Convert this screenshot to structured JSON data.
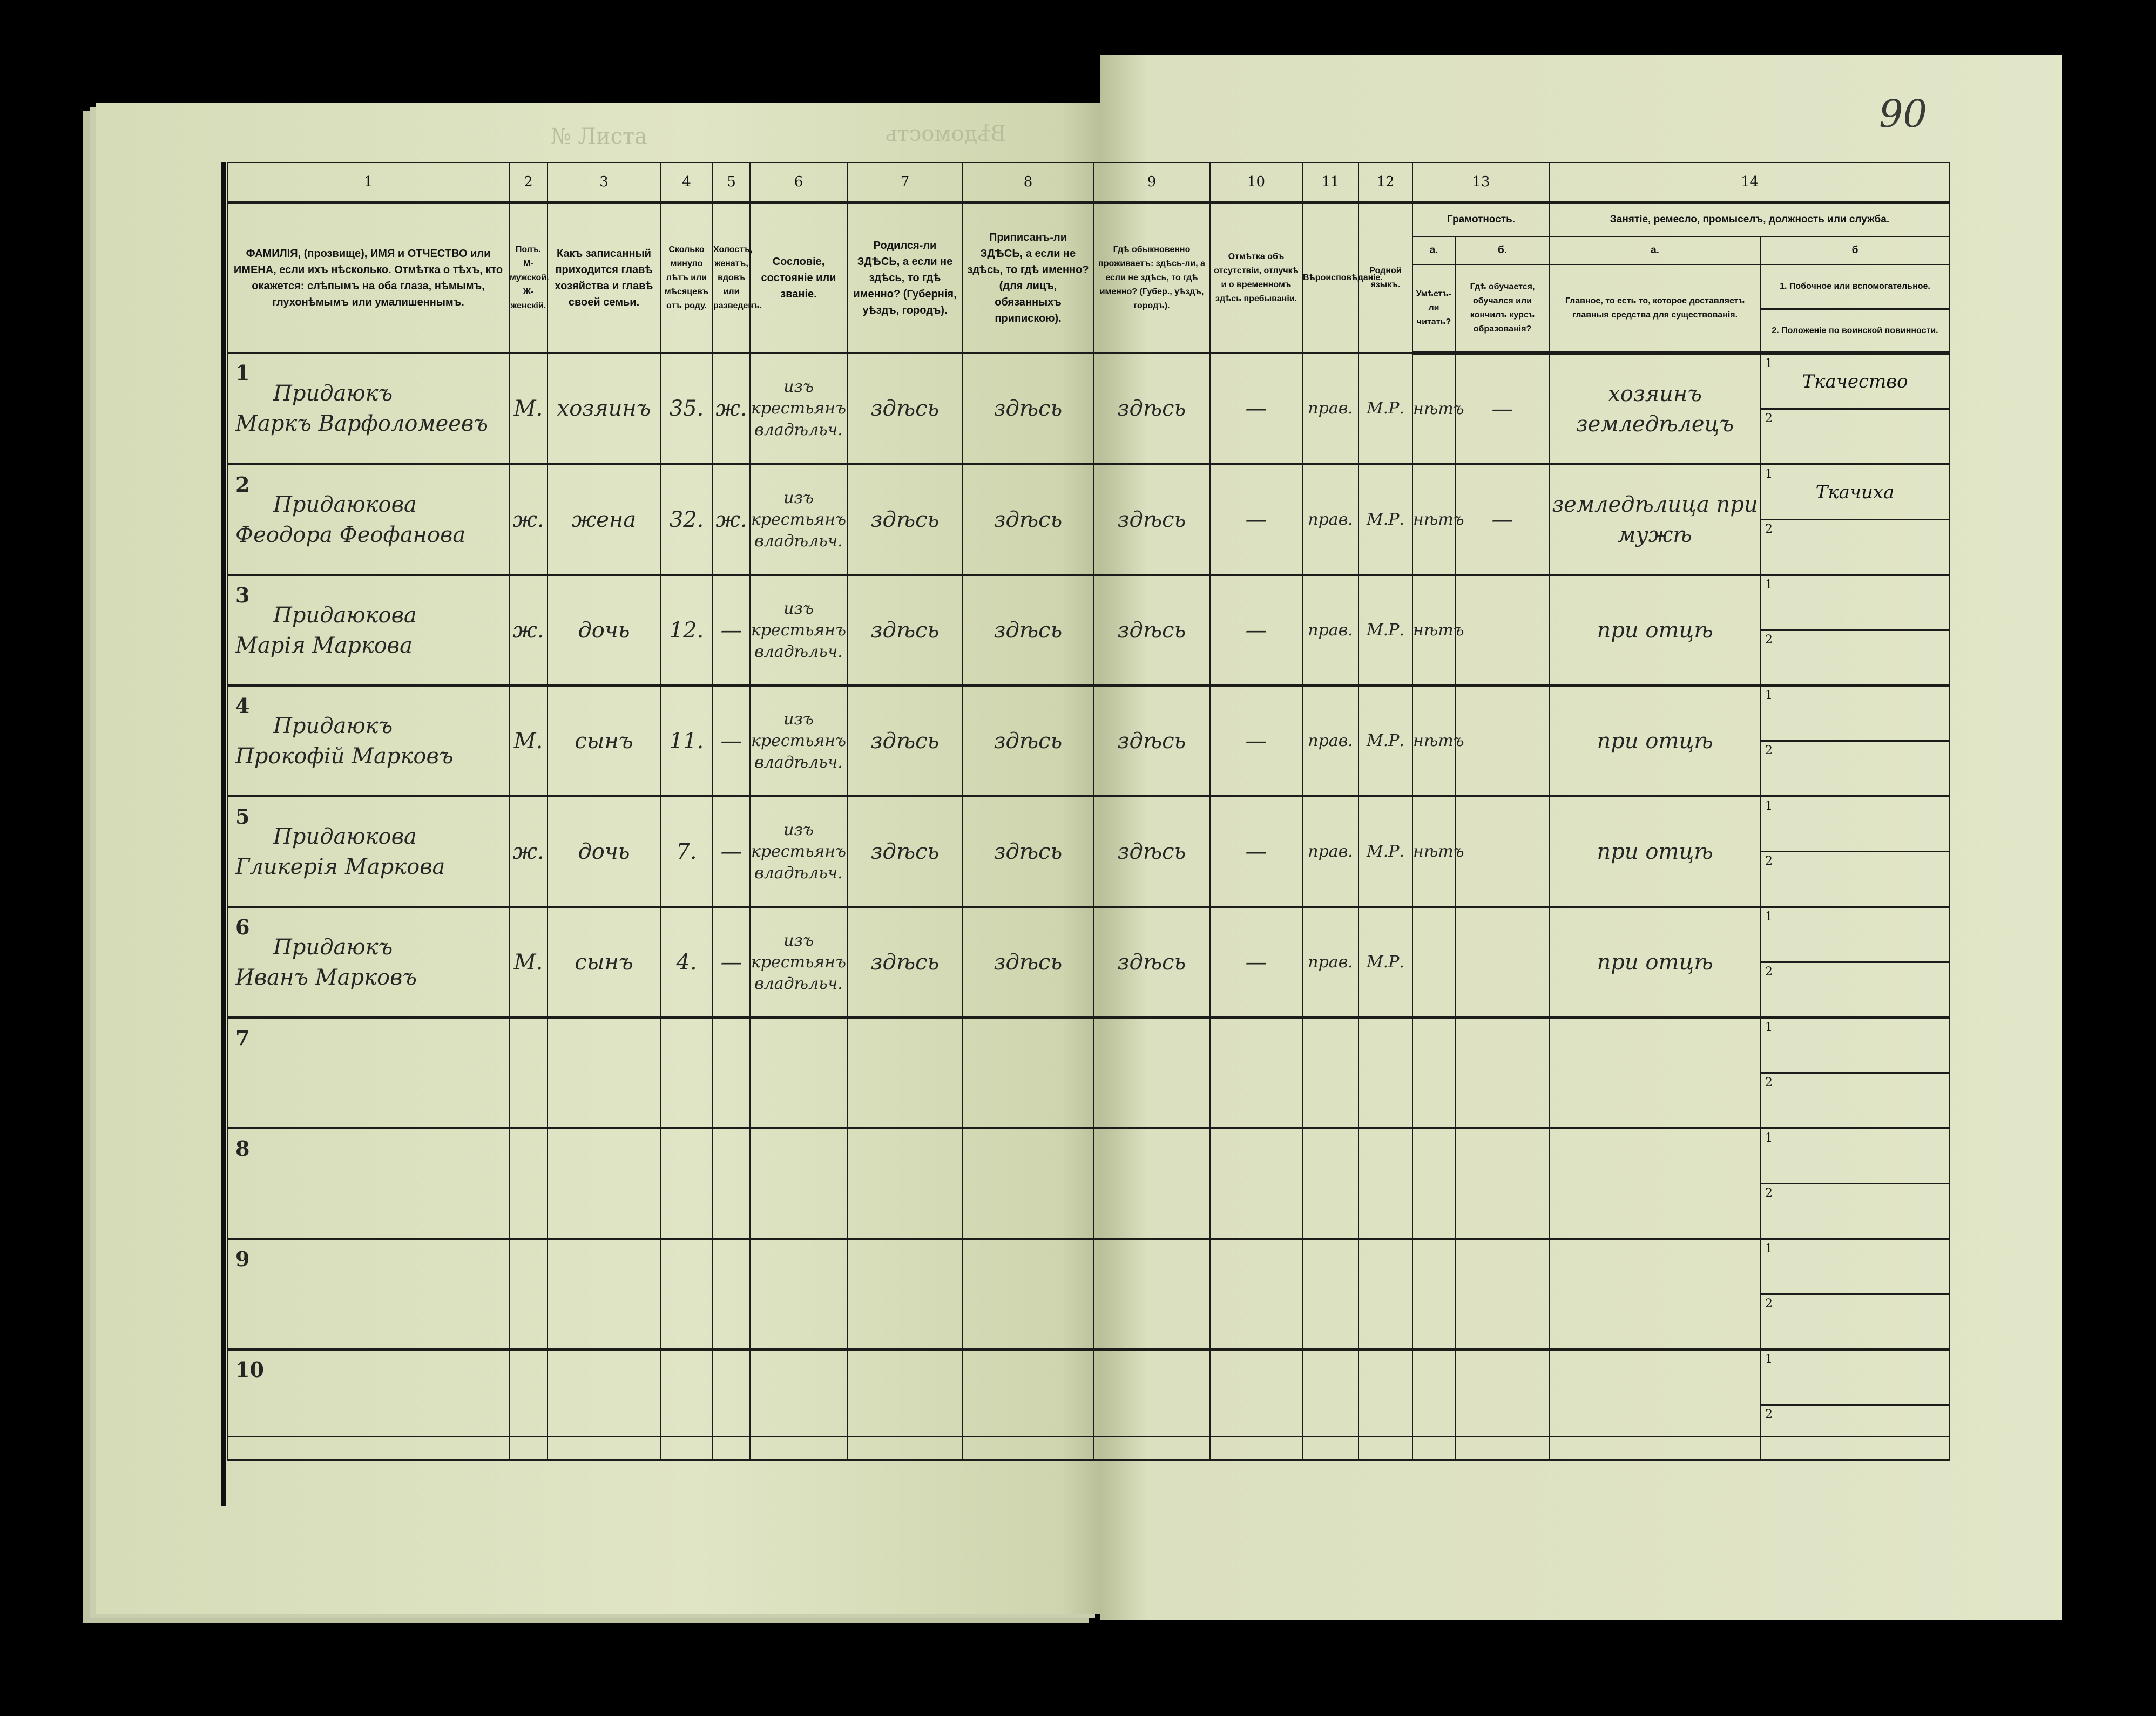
{
  "page": {
    "folio_number": "90",
    "ghost_title": "Вѣдомость",
    "ghost_number": "№ Листа"
  },
  "columns": {
    "numbers": [
      "1",
      "2",
      "3",
      "4",
      "5",
      "6",
      "7",
      "8",
      "9",
      "10",
      "11",
      "12",
      "13",
      "14"
    ],
    "c1": "ФАМИЛІЯ, (прозвище), ИМЯ и ОТЧЕСТВО или ИМЕНА, если ихъ нѣсколько. Отмѣтка о тѣхъ, кто окажется: слѣпымъ на оба глаза, нѣмымъ, глухонѣмымъ или умалишеннымъ.",
    "c2": "Полъ. М-мужской. Ж-женскій.",
    "c3": "Какъ записанный приходится главѣ хозяйства и главѣ своей семьи.",
    "c4": "Сколько минуло лѣтъ или мѣсяцевъ отъ роду.",
    "c5": "Холостъ, женатъ, вдовъ или разведенъ.",
    "c6": "Сословіе, состояніе или званіе.",
    "c7": "Родился-ли ЗДѢСЬ, а если не здѣсь, то гдѣ именно? (Губернія, уѣздъ, городъ).",
    "c8": "Приписанъ-ли ЗДѢСЬ, а если не здѣсь, то гдѣ именно? (для лицъ, обязанныхъ припискою).",
    "c9": "Гдѣ обыкновенно проживаетъ: здѣсь-ли, а если не здѣсь, то гдѣ именно? (Губер., уѣздъ, городъ).",
    "c10": "Отмѣтка объ отсутствіи, отлучкѣ и о временномъ здѣсь пребываніи.",
    "c11": "Вѣроисповѣданіе.",
    "c12": "Родной языкъ.",
    "c13_group": "Грамотность.",
    "c13a_letter": "а.",
    "c13b_letter": "б.",
    "c13a": "Умѣетъ-ли читать?",
    "c13b": "Гдѣ обучается, обучался или кончилъ курсъ образованія?",
    "c14_group": "Занятіе, ремесло, промыселъ, должность или служба.",
    "c14a_letter": "а.",
    "c14b_letter": "б",
    "c14a": "Главное, то есть то, которое доставляетъ главныя средства для существованія.",
    "c14b1": "1. Побочное или вспомогательное.",
    "c14b2": "2. Положеніе по воинской повинности."
  },
  "sub_labels": {
    "one": "1",
    "two": "2"
  },
  "rows": [
    {
      "n": "1",
      "surname": "Придаюкъ",
      "name": "Маркъ Варфоломеевъ",
      "sex": "М.",
      "relation": "хозяинъ",
      "age": "35.",
      "marital": "ж.",
      "estate": "изъ крестьянъ владѣльч.",
      "born": "здѣсь",
      "registered": "здѣсь",
      "resides": "здѣсь",
      "absence": "—",
      "religion": "прав.",
      "language": "М.Р.",
      "literate": "нѣтъ",
      "education": "—",
      "occupation": "хозяинъ земледѣлецъ",
      "side": "Ткачество",
      "military": ""
    },
    {
      "n": "2",
      "surname": "Придаюкова",
      "name": "Феодора Феофанова",
      "sex": "ж.",
      "relation": "жена",
      "age": "32.",
      "marital": "ж.",
      "estate": "изъ крестьянъ владѣльч.",
      "born": "здѣсь",
      "registered": "здѣсь",
      "resides": "здѣсь",
      "absence": "—",
      "religion": "прав.",
      "language": "М.Р.",
      "literate": "нѣтъ",
      "education": "—",
      "occupation": "земледѣлица при мужѣ",
      "side": "Ткачиха",
      "military": ""
    },
    {
      "n": "3",
      "surname": "Придаюкова",
      "name": "Марія Маркова",
      "sex": "ж.",
      "relation": "дочь",
      "age": "12.",
      "marital": "—",
      "estate": "изъ крестьянъ владѣльч.",
      "born": "здѣсь",
      "registered": "здѣсь",
      "resides": "здѣсь",
      "absence": "—",
      "religion": "прав.",
      "language": "М.Р.",
      "literate": "нѣтъ",
      "education": "",
      "occupation": "при отцѣ",
      "side": "",
      "military": ""
    },
    {
      "n": "4",
      "surname": "Придаюкъ",
      "name": "Прокофій Марковъ",
      "sex": "М.",
      "relation": "сынъ",
      "age": "11.",
      "marital": "—",
      "estate": "изъ крестьянъ владѣльч.",
      "born": "здѣсь",
      "registered": "здѣсь",
      "resides": "здѣсь",
      "absence": "—",
      "religion": "прав.",
      "language": "М.Р.",
      "literate": "нѣтъ",
      "education": "",
      "occupation": "при отцѣ",
      "side": "",
      "military": ""
    },
    {
      "n": "5",
      "surname": "Придаюкова",
      "name": "Гликерія Маркова",
      "sex": "ж.",
      "relation": "дочь",
      "age": "7.",
      "marital": "—",
      "estate": "изъ крестьянъ владѣльч.",
      "born": "здѣсь",
      "registered": "здѣсь",
      "resides": "здѣсь",
      "absence": "—",
      "religion": "прав.",
      "language": "М.Р.",
      "literate": "нѣтъ",
      "education": "",
      "occupation": "при отцѣ",
      "side": "",
      "military": ""
    },
    {
      "n": "6",
      "surname": "Придаюкъ",
      "name": "Иванъ Марковъ",
      "sex": "М.",
      "relation": "сынъ",
      "age": "4.",
      "marital": "—",
      "estate": "изъ крестьянъ владѣльч.",
      "born": "здѣсь",
      "registered": "здѣсь",
      "resides": "здѣсь",
      "absence": "—",
      "religion": "прав.",
      "language": "М.Р.",
      "literate": "",
      "education": "",
      "occupation": "при отцѣ",
      "side": "",
      "military": ""
    },
    {
      "n": "7"
    },
    {
      "n": "8"
    },
    {
      "n": "9"
    },
    {
      "n": "10"
    }
  ]
}
